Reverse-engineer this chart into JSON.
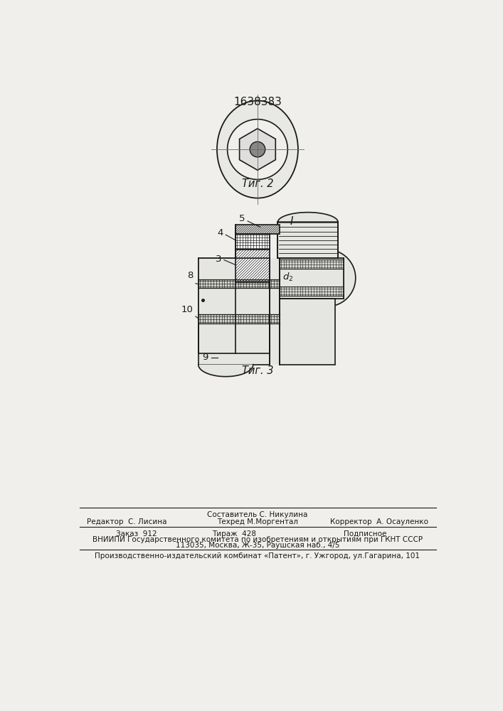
{
  "patent_number": "1638383",
  "fig2_label": "Τиг. 2",
  "fig3_label": "Τиг. 3",
  "label_I": "I",
  "footer_col1_line1": "",
  "footer_col2_line1": "Составитель С. Никулина",
  "footer_col3_line1": "",
  "footer_col1_line2": "Редактор  С. Лисина",
  "footer_col2_line2": "Техред М.Моргентал",
  "footer_col3_line2": "Корректор  А. Осауленко",
  "footer_order": "Заказ  912",
  "footer_tirazh": "Тираж  428",
  "footer_podp": "Подписное",
  "footer_vniip1": "ВНИИПИ Государственного комитета по изобретениям и открытиям при ГКНТ СССР",
  "footer_vniip2": "113035, Москва, Ж-35, Раушская наб., 4/5",
  "footer_proizv": "Производственно-издательский комбинат «Патент», г. Ужгород, ул.Гагарина, 101",
  "bg_color": "#f0efeb",
  "line_color": "#1a1a1a"
}
